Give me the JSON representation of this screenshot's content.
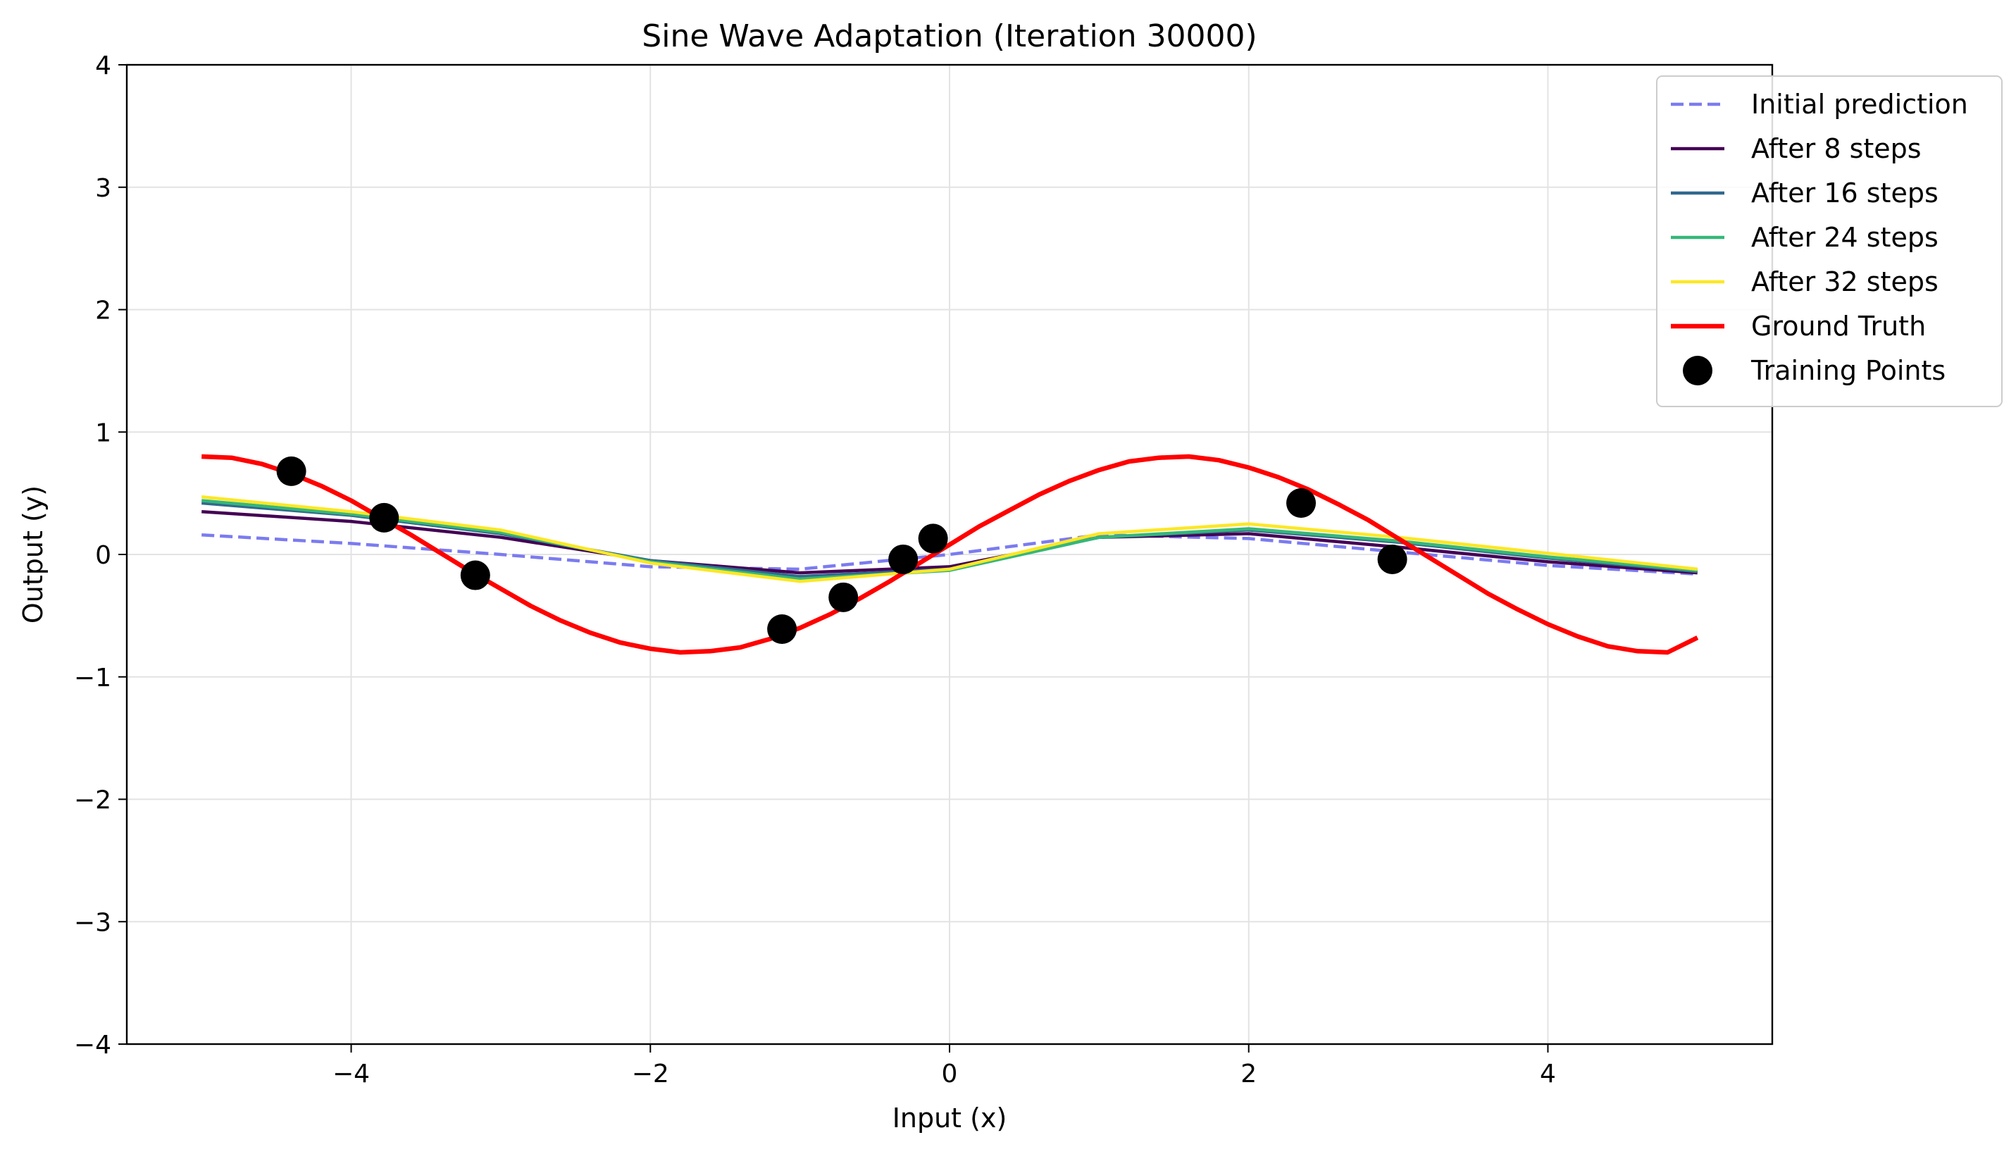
{
  "chart_data": {
    "type": "line",
    "title": "Sine Wave Adaptation (Iteration 30000)",
    "xlabel": "Input (x)",
    "ylabel": "Output (y)",
    "xlim": [
      -5.5,
      5.5
    ],
    "ylim": [
      -4,
      4
    ],
    "xticks": [
      -4,
      -2,
      0,
      2,
      4
    ],
    "yticks": [
      -4,
      -3,
      -2,
      -1,
      0,
      1,
      2,
      3,
      4
    ],
    "xtick_labels": [
      "−4",
      "−2",
      "0",
      "2",
      "4"
    ],
    "ytick_labels": [
      "−4",
      "−3",
      "−2",
      "−1",
      "0",
      "1",
      "2",
      "3",
      "4"
    ],
    "grid": true,
    "legend_position": "top-right",
    "series": [
      {
        "name": "Initial prediction",
        "color": "#7b7bf0",
        "style": "dashed",
        "x": [
          -5,
          -4,
          -3,
          -2,
          -1,
          0,
          1,
          2,
          3,
          4,
          5
        ],
        "y": [
          0.16,
          0.09,
          0.0,
          -0.1,
          -0.12,
          0.0,
          0.16,
          0.13,
          0.02,
          -0.09,
          -0.16
        ]
      },
      {
        "name": "After 8 steps",
        "color": "#440154",
        "style": "solid",
        "x": [
          -5,
          -4,
          -3,
          -2,
          -1,
          0,
          1,
          2,
          3,
          4,
          5
        ],
        "y": [
          0.35,
          0.27,
          0.14,
          -0.05,
          -0.15,
          -0.1,
          0.14,
          0.17,
          0.06,
          -0.06,
          -0.15
        ]
      },
      {
        "name": "After 16 steps",
        "color": "#31688e",
        "style": "solid",
        "x": [
          -5,
          -4,
          -3,
          -2,
          -1,
          0,
          1,
          2,
          3,
          4,
          5
        ],
        "y": [
          0.42,
          0.32,
          0.17,
          -0.05,
          -0.18,
          -0.12,
          0.14,
          0.2,
          0.1,
          -0.03,
          -0.14
        ]
      },
      {
        "name": "After 24 steps",
        "color": "#35b779",
        "style": "solid",
        "x": [
          -5,
          -4,
          -3,
          -2,
          -1,
          0,
          1,
          2,
          3,
          4,
          5
        ],
        "y": [
          0.44,
          0.33,
          0.18,
          -0.06,
          -0.2,
          -0.13,
          0.14,
          0.21,
          0.11,
          -0.02,
          -0.13
        ]
      },
      {
        "name": "After 32 steps",
        "color": "#fde725",
        "style": "solid",
        "x": [
          -5,
          -4,
          -3,
          -2,
          -1,
          0,
          1,
          2,
          3,
          4,
          5
        ],
        "y": [
          0.47,
          0.35,
          0.2,
          -0.07,
          -0.22,
          -0.12,
          0.17,
          0.25,
          0.14,
          0.01,
          -0.12
        ]
      },
      {
        "name": "Ground Truth",
        "color": "#ff0000",
        "style": "solid-thick",
        "x": [
          -5.0,
          -4.8,
          -4.6,
          -4.4,
          -4.2,
          -4.0,
          -3.8,
          -3.6,
          -3.4,
          -3.2,
          -3.0,
          -2.8,
          -2.6,
          -2.4,
          -2.2,
          -2.0,
          -1.8,
          -1.6,
          -1.4,
          -1.2,
          -1.0,
          -0.8,
          -0.6,
          -0.4,
          -0.2,
          0.0,
          0.2,
          0.4,
          0.6,
          0.8,
          1.0,
          1.2,
          1.4,
          1.6,
          1.8,
          2.0,
          2.2,
          2.4,
          2.6,
          2.8,
          3.0,
          3.2,
          3.4,
          3.6,
          3.8,
          4.0,
          4.2,
          4.4,
          4.6,
          4.8,
          5.0
        ],
        "y": [
          0.8,
          0.79,
          0.74,
          0.66,
          0.56,
          0.44,
          0.3,
          0.16,
          0.01,
          -0.14,
          -0.28,
          -0.42,
          -0.54,
          -0.64,
          -0.72,
          -0.77,
          -0.8,
          -0.79,
          -0.76,
          -0.69,
          -0.6,
          -0.49,
          -0.36,
          -0.22,
          -0.07,
          0.08,
          0.23,
          0.36,
          0.49,
          0.6,
          0.69,
          0.76,
          0.79,
          0.8,
          0.77,
          0.71,
          0.63,
          0.53,
          0.41,
          0.28,
          0.13,
          -0.02,
          -0.17,
          -0.32,
          -0.45,
          -0.57,
          -0.67,
          -0.75,
          -0.79,
          -0.8,
          -0.68
        ]
      }
    ],
    "points": {
      "name": "Training Points",
      "color": "#000000",
      "x": [
        -4.4,
        -3.78,
        -3.17,
        -1.12,
        -0.71,
        -0.31,
        -0.11,
        2.35,
        2.96
      ],
      "y": [
        0.68,
        0.3,
        -0.17,
        -0.61,
        -0.35,
        -0.04,
        0.13,
        0.42,
        -0.04
      ]
    }
  }
}
